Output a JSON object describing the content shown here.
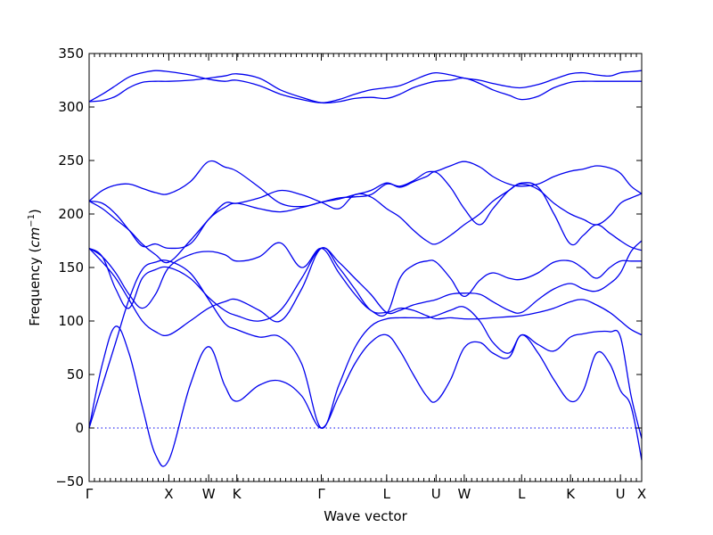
{
  "chart_data": {
    "type": "line",
    "title": "",
    "xlabel": "Wave vector",
    "ylabel_prefix": "Frequency (",
    "ylabel_unit": "cm",
    "ylabel_exp": "−1",
    "ylabel_suffix": ")",
    "ylim": [
      -50,
      350
    ],
    "y_ticks": [
      -50,
      0,
      50,
      100,
      150,
      200,
      250,
      300,
      350
    ],
    "y_tick_labels": [
      "−50",
      "0",
      "50",
      "100",
      "150",
      "200",
      "250",
      "300",
      "350"
    ],
    "xlim": [
      0,
      10.4
    ],
    "x_ticks": [
      0,
      1.5,
      2.25,
      2.78,
      4.37,
      5.6,
      6.53,
      7.06,
      8.14,
      9.06,
      10.0,
      10.4
    ],
    "x_tick_labels": [
      "Γ",
      "X",
      "W",
      "K",
      "Γ",
      "L",
      "U",
      "W",
      "L",
      "K",
      "U",
      "X"
    ],
    "grid": false,
    "legend": "none",
    "zero_line": true,
    "color": "#0000ee",
    "series": [
      {
        "x": [
          0,
          0.25,
          0.5,
          0.75,
          1.0,
          1.25,
          1.5,
          1.9,
          2.25,
          2.55,
          2.78,
          3.2,
          3.6,
          4.0,
          4.37,
          4.7,
          5.0,
          5.3,
          5.6,
          5.85,
          6.1,
          6.35,
          6.53,
          6.8,
          7.06,
          7.35,
          7.6,
          7.9,
          8.14,
          8.45,
          8.75,
          9.06,
          9.3,
          9.55,
          9.8,
          10.0,
          10.2,
          10.4
        ],
        "y": [
          305,
          312,
          320,
          328,
          332,
          334,
          333,
          330,
          326,
          324,
          325,
          320,
          312,
          307,
          304,
          307,
          312,
          316,
          318,
          320,
          325,
          330,
          332,
          330,
          327,
          325,
          322,
          319,
          318,
          321,
          326,
          331,
          332,
          330,
          329,
          332,
          333,
          334
        ]
      },
      {
        "x": [
          0,
          0.25,
          0.5,
          0.75,
          1.0,
          1.25,
          1.5,
          1.9,
          2.25,
          2.55,
          2.78,
          3.2,
          3.6,
          4.0,
          4.37,
          4.7,
          5.0,
          5.3,
          5.6,
          5.85,
          6.1,
          6.35,
          6.53,
          6.8,
          7.06,
          7.35,
          7.6,
          7.9,
          8.14,
          8.45,
          8.75,
          9.06,
          9.3,
          9.55,
          9.8,
          10.0,
          10.2,
          10.4
        ],
        "y": [
          305,
          306,
          310,
          318,
          323,
          324,
          324,
          325,
          327,
          329,
          331,
          327,
          316,
          309,
          304,
          305,
          308,
          309,
          308,
          312,
          318,
          322,
          324,
          325,
          327,
          322,
          316,
          311,
          307,
          310,
          318,
          323,
          324,
          324,
          324,
          324,
          324,
          324
        ]
      },
      {
        "x": [
          0,
          0.25,
          0.5,
          0.75,
          1.0,
          1.25,
          1.5,
          1.9,
          2.25,
          2.55,
          2.78,
          3.2,
          3.6,
          4.0,
          4.37,
          4.7,
          5.0,
          5.3,
          5.6,
          5.85,
          6.1,
          6.35,
          6.53,
          6.8,
          7.06,
          7.35,
          7.6,
          7.9,
          8.14,
          8.45,
          8.75,
          9.06,
          9.3,
          9.55,
          9.8,
          10.0,
          10.2,
          10.4
        ],
        "y": [
          212,
          222,
          227,
          228,
          224,
          220,
          219,
          230,
          249,
          244,
          240,
          225,
          210,
          207,
          211,
          215,
          216,
          218,
          228,
          226,
          231,
          239,
          240,
          245,
          249,
          244,
          235,
          228,
          226,
          228,
          235,
          240,
          242,
          245,
          243,
          238,
          226,
          219
        ]
      },
      {
        "x": [
          0,
          0.25,
          0.5,
          0.75,
          1.0,
          1.25,
          1.5,
          1.9,
          2.25,
          2.55,
          2.78,
          3.2,
          3.6,
          4.0,
          4.37,
          4.7,
          5.0,
          5.3,
          5.6,
          5.85,
          6.1,
          6.35,
          6.53,
          6.8,
          7.06,
          7.35,
          7.6,
          7.9,
          8.14,
          8.45,
          8.75,
          9.06,
          9.3,
          9.55,
          9.8,
          10.0,
          10.2,
          10.4
        ],
        "y": [
          212,
          210,
          200,
          185,
          170,
          172,
          168,
          172,
          195,
          206,
          210,
          205,
          202,
          206,
          211,
          214,
          218,
          222,
          229,
          225,
          230,
          235,
          239,
          225,
          205,
          190,
          205,
          222,
          228,
          223,
          210,
          200,
          195,
          190,
          198,
          210,
          215,
          219
        ]
      },
      {
        "x": [
          0,
          0.25,
          0.5,
          0.75,
          1.0,
          1.25,
          1.5,
          1.9,
          2.25,
          2.55,
          2.78,
          3.2,
          3.6,
          4.0,
          4.37,
          4.7,
          5.0,
          5.3,
          5.6,
          5.85,
          6.1,
          6.35,
          6.53,
          6.8,
          7.06,
          7.35,
          7.6,
          7.9,
          8.14,
          8.45,
          8.75,
          9.06,
          9.3,
          9.55,
          9.8,
          10.0,
          10.2,
          10.4
        ],
        "y": [
          212,
          205,
          195,
          185,
          172,
          162,
          155,
          175,
          195,
          210,
          210,
          215,
          222,
          218,
          211,
          205,
          218,
          216,
          205,
          197,
          185,
          175,
          172,
          180,
          190,
          200,
          212,
          222,
          229,
          225,
          200,
          172,
          180,
          190,
          182,
          175,
          169,
          166
        ]
      },
      {
        "x": [
          0,
          0.25,
          0.5,
          0.75,
          1.0,
          1.25,
          1.5,
          1.9,
          2.25,
          2.55,
          2.78,
          3.2,
          3.6,
          4.0,
          4.37,
          4.7,
          5.0,
          5.3,
          5.6,
          5.85,
          6.1,
          6.35,
          6.53,
          6.8,
          7.06,
          7.35,
          7.6,
          7.9,
          8.14,
          8.45,
          8.75,
          9.06,
          9.3,
          9.55,
          9.8,
          10.0,
          10.2,
          10.4
        ],
        "y": [
          168,
          160,
          145,
          125,
          112,
          125,
          150,
          162,
          165,
          162,
          156,
          160,
          173,
          150,
          168,
          145,
          125,
          110,
          107,
          140,
          152,
          156,
          155,
          140,
          123,
          138,
          145,
          140,
          139,
          145,
          155,
          156,
          149,
          140,
          150,
          156,
          156,
          156
        ]
      },
      {
        "x": [
          0,
          0.25,
          0.5,
          0.75,
          1.0,
          1.25,
          1.5,
          1.9,
          2.25,
          2.55,
          2.78,
          3.2,
          3.6,
          4.0,
          4.37,
          4.7,
          5.0,
          5.3,
          5.6,
          5.85,
          6.1,
          6.35,
          6.53,
          6.8,
          7.06,
          7.35,
          7.6,
          7.9,
          8.14,
          8.45,
          8.75,
          9.06,
          9.3,
          9.55,
          9.8,
          10.0,
          10.2,
          10.4
        ],
        "y": [
          168,
          160,
          130,
          112,
          140,
          148,
          150,
          140,
          122,
          110,
          105,
          100,
          110,
          140,
          168,
          155,
          140,
          125,
          108,
          110,
          115,
          118,
          120,
          125,
          126,
          125,
          118,
          110,
          108,
          120,
          130,
          135,
          130,
          128,
          135,
          145,
          165,
          175
        ]
      },
      {
        "x": [
          0,
          0.25,
          0.5,
          0.75,
          1.0,
          1.25,
          1.5,
          1.9,
          2.25,
          2.55,
          2.78,
          3.2,
          3.6,
          4.0,
          4.37,
          4.7,
          5.0,
          5.3,
          5.6,
          5.85,
          6.1,
          6.35,
          6.53,
          6.8,
          7.06,
          7.35,
          7.6,
          7.9,
          8.14,
          8.45,
          8.75,
          9.06,
          9.3,
          9.55,
          9.8,
          10.0,
          10.2,
          10.4
        ],
        "y": [
          168,
          155,
          140,
          120,
          100,
          90,
          87,
          100,
          112,
          118,
          120,
          110,
          100,
          130,
          168,
          150,
          130,
          110,
          108,
          112,
          110,
          105,
          102,
          103,
          102,
          102,
          103,
          104,
          105,
          108,
          112,
          118,
          120,
          115,
          108,
          100,
          92,
          87
        ]
      },
      {
        "x": [
          0,
          0.25,
          0.5,
          0.75,
          1.0,
          1.25,
          1.5,
          1.9,
          2.25,
          2.55,
          2.78,
          3.2,
          3.6,
          4.0,
          4.37,
          4.7,
          5.0,
          5.3,
          5.6,
          5.85,
          6.1,
          6.35,
          6.53,
          6.8,
          7.06,
          7.35,
          7.6,
          7.9,
          8.14,
          8.45,
          8.75,
          9.06,
          9.3,
          9.55,
          9.8,
          10.0,
          10.2,
          10.4
        ],
        "y": [
          0,
          40,
          80,
          120,
          148,
          155,
          156,
          145,
          120,
          98,
          92,
          85,
          85,
          60,
          0,
          40,
          75,
          95,
          102,
          103,
          103,
          103,
          105,
          110,
          113,
          100,
          80,
          70,
          87,
          78,
          72,
          85,
          88,
          90,
          90,
          85,
          30,
          -10
        ]
      },
      {
        "x": [
          0,
          0.25,
          0.5,
          0.75,
          1.0,
          1.25,
          1.5,
          1.9,
          2.25,
          2.55,
          2.78,
          3.2,
          3.6,
          4.0,
          4.37,
          4.7,
          5.0,
          5.3,
          5.6,
          5.85,
          6.1,
          6.35,
          6.53,
          6.8,
          7.06,
          7.35,
          7.6,
          7.9,
          8.14,
          8.45,
          8.75,
          9.06,
          9.3,
          9.55,
          9.8,
          10.0,
          10.2,
          10.4
        ],
        "y": [
          0,
          60,
          95,
          70,
          20,
          -25,
          -30,
          40,
          76,
          40,
          25,
          40,
          44,
          30,
          0,
          30,
          60,
          80,
          87,
          72,
          50,
          30,
          25,
          45,
          75,
          80,
          70,
          66,
          87,
          70,
          45,
          25,
          35,
          70,
          60,
          35,
          20,
          -30
        ]
      }
    ]
  }
}
